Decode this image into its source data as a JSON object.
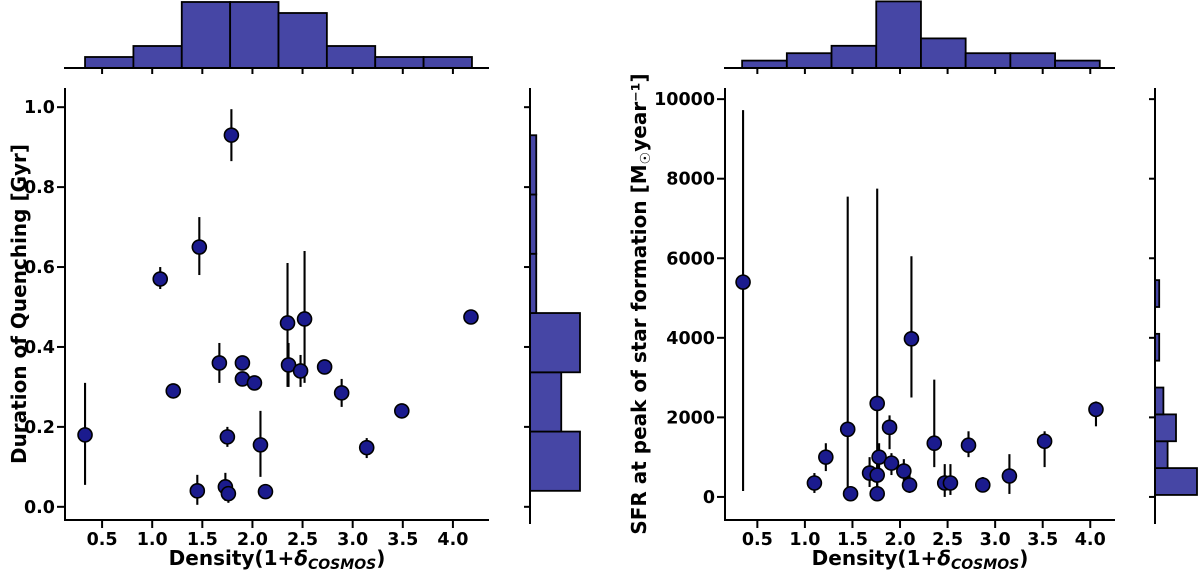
{
  "figure": {
    "background": "#ffffff",
    "marker_color": "#1b1b8e",
    "bar_color": "#4646a5",
    "edge_color": "#000000"
  },
  "chart_data": [
    {
      "type": "scatter",
      "panel": "left",
      "title": "",
      "xlabel_parts": [
        {
          "t": "Density(1+"
        },
        {
          "t": "δ",
          "i": true
        },
        {
          "t": "COSMOS",
          "i": true,
          "sub": true
        },
        {
          "t": ")"
        }
      ],
      "ylabel_parts": [
        {
          "t": "Duration of Quenching [Gyr]"
        }
      ],
      "xlim": [
        0.13,
        4.36
      ],
      "ylim": [
        -0.033,
        1.048
      ],
      "grid": false,
      "legend": "none",
      "xticks": {
        "values": [
          0.5,
          1.0,
          1.5,
          2.0,
          2.5,
          3.0,
          3.5,
          4.0
        ],
        "labels": [
          "0.5",
          "1.0",
          "1.5",
          "2.0",
          "2.5",
          "3.0",
          "3.5",
          "4.0"
        ]
      },
      "yticks": {
        "values": [
          0.0,
          0.2,
          0.4,
          0.6,
          0.8,
          1.0
        ],
        "labels": [
          "0.0",
          "0.2",
          "0.4",
          "0.6",
          "0.8",
          "1.0"
        ]
      },
      "points_columns": [
        "x",
        "y",
        "err_low",
        "err_high"
      ],
      "points": [
        [
          0.33,
          0.18,
          0.055,
          0.31
        ],
        [
          1.08,
          0.57,
          0.545,
          0.6
        ],
        [
          1.21,
          0.29,
          0.275,
          0.305
        ],
        [
          1.47,
          0.65,
          0.58,
          0.725
        ],
        [
          1.45,
          0.04,
          0.005,
          0.08
        ],
        [
          1.67,
          0.36,
          0.31,
          0.41
        ],
        [
          1.75,
          0.175,
          0.15,
          0.2
        ],
        [
          1.73,
          0.05,
          0.015,
          0.085
        ],
        [
          1.76,
          0.033,
          0.01,
          0.06
        ],
        [
          1.79,
          0.93,
          0.865,
          0.995
        ],
        [
          1.9,
          0.36,
          0.345,
          0.375
        ],
        [
          1.9,
          0.32,
          0.305,
          0.335
        ],
        [
          2.02,
          0.31,
          0.295,
          0.325
        ],
        [
          2.08,
          0.155,
          0.075,
          0.24
        ],
        [
          2.13,
          0.038,
          0.025,
          0.05
        ],
        [
          2.35,
          0.46,
          0.3,
          0.61
        ],
        [
          2.36,
          0.355,
          0.3,
          0.41
        ],
        [
          2.48,
          0.34,
          0.3,
          0.38
        ],
        [
          2.52,
          0.47,
          0.31,
          0.64
        ],
        [
          2.72,
          0.35,
          0.335,
          0.365
        ],
        [
          2.89,
          0.285,
          0.25,
          0.32
        ],
        [
          3.14,
          0.148,
          0.122,
          0.172
        ],
        [
          3.49,
          0.24,
          0.228,
          0.252
        ],
        [
          4.18,
          0.475,
          0.465,
          0.485
        ]
      ],
      "top_histogram": {
        "bin_start": 0.33,
        "bin_width": 0.4825,
        "counts": [
          1,
          2,
          6,
          6,
          5,
          2,
          1,
          1
        ]
      },
      "side_histogram": {
        "bin_start": 0.04,
        "bin_width": 0.1483,
        "counts": [
          8,
          5,
          8,
          1,
          1,
          1
        ]
      }
    },
    {
      "type": "scatter",
      "panel": "right",
      "title": "",
      "xlabel_parts": [
        {
          "t": "Density(1+"
        },
        {
          "t": "δ",
          "i": true
        },
        {
          "t": "COSMOS",
          "i": true,
          "sub": true
        },
        {
          "t": ")"
        }
      ],
      "ylabel_parts": [
        {
          "t": "SFR at peak of star formation [M"
        },
        {
          "t": "☉",
          "sub": true
        },
        {
          "t": "year"
        },
        {
          "t": "⁻¹"
        },
        {
          "t": "]"
        }
      ],
      "xlim": [
        0.16,
        4.26
      ],
      "ylim": [
        -580,
        10280
      ],
      "grid": false,
      "legend": "none",
      "xticks": {
        "values": [
          0.5,
          1.0,
          1.5,
          2.0,
          2.5,
          3.0,
          3.5,
          4.0
        ],
        "labels": [
          "0.5",
          "1.0",
          "1.5",
          "2.0",
          "2.5",
          "3.0",
          "3.5",
          "4.0"
        ]
      },
      "yticks": {
        "values": [
          0,
          2000,
          4000,
          6000,
          8000,
          10000
        ],
        "labels": [
          "0",
          "2000",
          "4000",
          "6000",
          "8000",
          "10000"
        ]
      },
      "points_columns": [
        "x",
        "y",
        "err_low",
        "err_high"
      ],
      "points": [
        [
          0.35,
          5400,
          150,
          9725
        ],
        [
          1.1,
          350,
          100,
          600
        ],
        [
          1.22,
          1000,
          650,
          1350
        ],
        [
          1.45,
          1700,
          50,
          7550
        ],
        [
          1.48,
          80,
          0,
          250
        ],
        [
          1.68,
          600,
          250,
          1000
        ],
        [
          1.76,
          2350,
          200,
          7750
        ],
        [
          1.76,
          550,
          250,
          900
        ],
        [
          1.76,
          80,
          0,
          250
        ],
        [
          1.78,
          1000,
          650,
          1350
        ],
        [
          1.89,
          1750,
          1200,
          2050
        ],
        [
          1.91,
          850,
          550,
          1100
        ],
        [
          2.04,
          650,
          350,
          950
        ],
        [
          2.1,
          300,
          100,
          550
        ],
        [
          2.12,
          3975,
          2500,
          6050
        ],
        [
          2.36,
          1350,
          750,
          2950
        ],
        [
          2.47,
          350,
          0,
          825
        ],
        [
          2.53,
          350,
          50,
          825
        ],
        [
          2.72,
          1300,
          1000,
          1650
        ],
        [
          2.87,
          300,
          150,
          500
        ],
        [
          3.15,
          525,
          75,
          1075
        ],
        [
          3.52,
          1400,
          750,
          1650
        ],
        [
          4.06,
          2200,
          1775,
          2400
        ]
      ],
      "top_histogram": {
        "bin_start": 0.34,
        "bin_width": 0.47,
        "counts": [
          1,
          2,
          3,
          9,
          4,
          2,
          2,
          1
        ]
      },
      "side_histogram": {
        "bin_start": 50,
        "bin_width": 675,
        "counts": [
          10,
          3,
          5,
          2,
          0,
          1,
          0,
          1
        ]
      }
    }
  ]
}
